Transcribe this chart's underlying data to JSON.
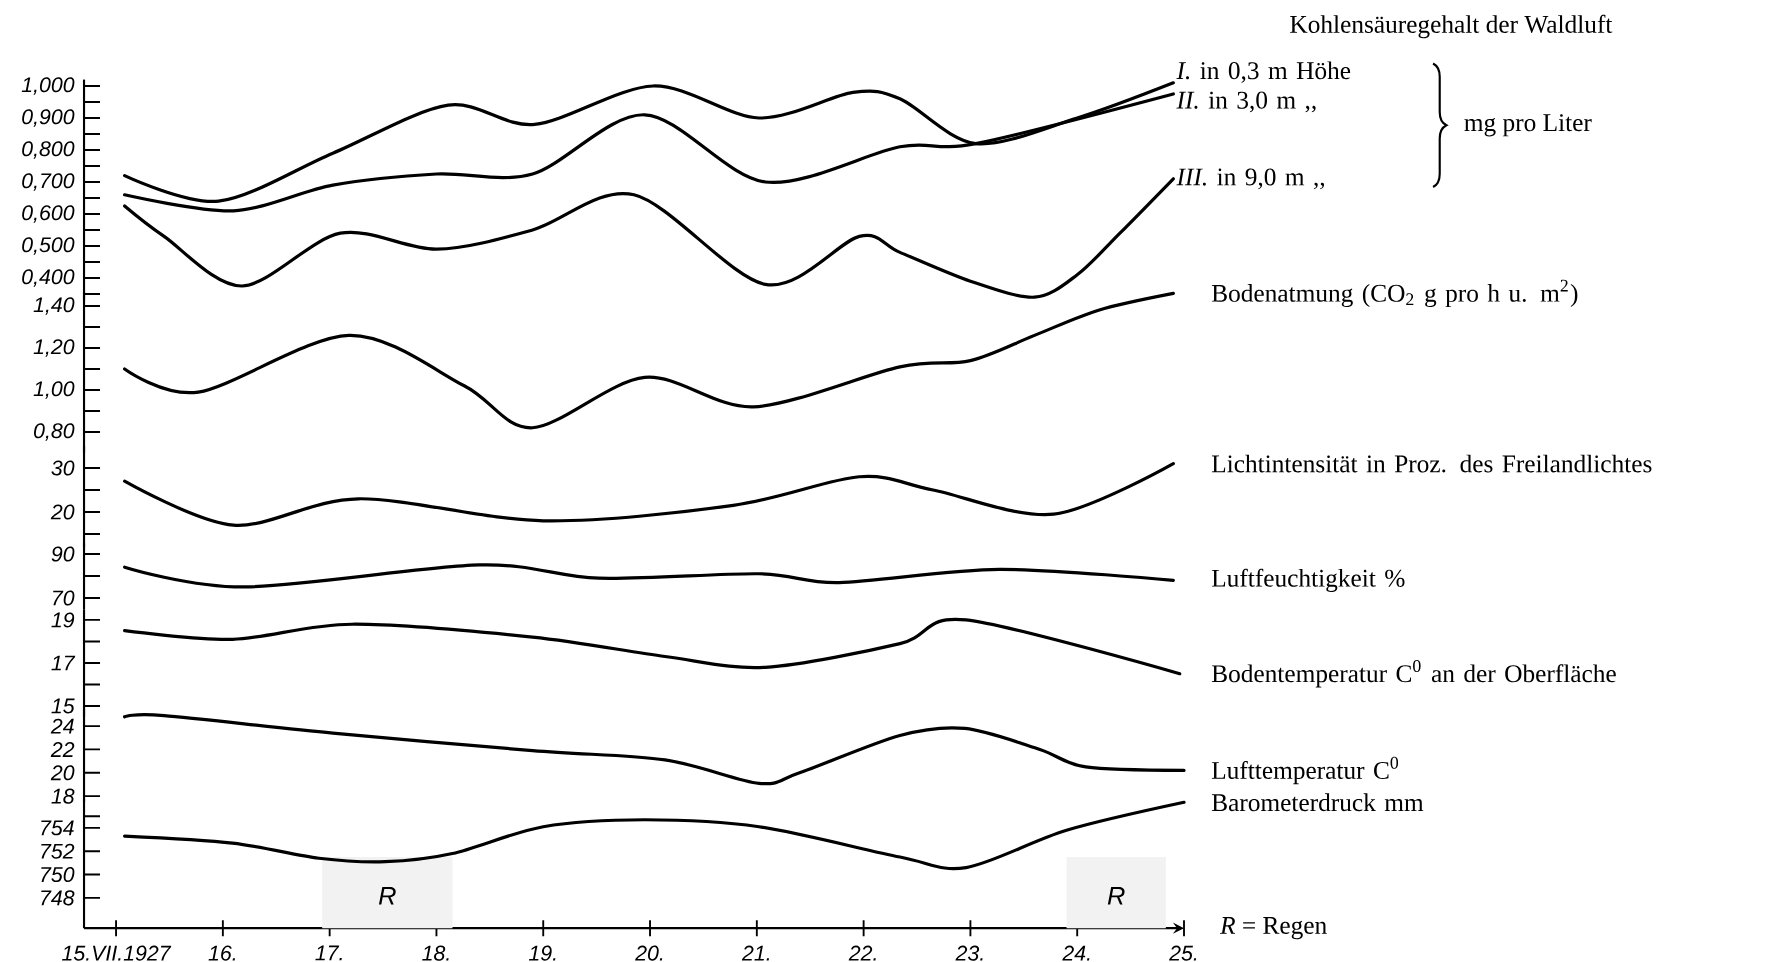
{
  "chart_data": [
    {
      "type": "line",
      "legend_title": "Kohlensäuregehalt der Waldluft",
      "ylabel": "mg pro Liter",
      "tick_labels": "y",
      "xlim": [
        14.7,
        25
      ],
      "ylim": [
        0.33,
        1.02
      ],
      "yticks": [
        {
          "value": 0.35,
          "label": null
        },
        {
          "value": 0.4,
          "label": "0,400"
        },
        {
          "value": 0.45,
          "label": null
        },
        {
          "value": 0.5,
          "label": "0,500"
        },
        {
          "value": 0.55,
          "label": null
        },
        {
          "value": 0.6,
          "label": "0,600"
        },
        {
          "value": 0.65,
          "label": null
        },
        {
          "value": 0.7,
          "label": "0,700"
        },
        {
          "value": 0.75,
          "label": null
        },
        {
          "value": 0.8,
          "label": "0,800"
        },
        {
          "value": 0.85,
          "label": null
        },
        {
          "value": 0.9,
          "label": "0,900"
        },
        {
          "value": 0.95,
          "label": null
        },
        {
          "value": 1.0,
          "label": "1,000"
        }
      ],
      "series": [
        {
          "name": "*I.* in 0,3 m Höhe",
          "color": "#000000",
          "x": [
            15.08,
            15.96,
            17.03,
            18.11,
            18.92,
            20.03,
            21.02,
            21.9,
            22.34,
            23.05,
            24.0,
            24.9
          ],
          "values": [
            0.72,
            0.64,
            0.79,
            0.94,
            0.88,
            1.0,
            0.9,
            0.98,
            0.96,
            0.82,
            0.9,
            1.01
          ]
        },
        {
          "name": "*II.* in 3,0 m ,,",
          "color": "#000000",
          "x": [
            15.08,
            16.1,
            17.03,
            18.0,
            18.9,
            19.95,
            21.08,
            22.34,
            23.05,
            24.9
          ],
          "values": [
            0.66,
            0.61,
            0.69,
            0.725,
            0.725,
            0.91,
            0.7,
            0.81,
            0.82,
            0.975
          ]
        },
        {
          "name": "*III.* in 9,0 m ,,",
          "color": "#000000",
          "x": [
            15.08,
            15.45,
            16.18,
            17.1,
            18.0,
            18.9,
            19.85,
            21.08,
            21.96,
            22.34,
            23.0,
            23.6,
            24.0,
            24.4,
            24.9
          ],
          "values": [
            0.625,
            0.53,
            0.375,
            0.54,
            0.49,
            0.55,
            0.66,
            0.38,
            0.53,
            0.48,
            0.39,
            0.34,
            0.41,
            0.54,
            0.71
          ]
        }
      ]
    },
    {
      "type": "line",
      "tick_labels": "y",
      "xlim": [
        14.7,
        25
      ],
      "ylim": [
        0.7,
        1.47
      ],
      "yticks": [
        {
          "value": 0.8,
          "label": "0,80"
        },
        {
          "value": 0.9,
          "label": null
        },
        {
          "value": 1.0,
          "label": "1,00"
        },
        {
          "value": 1.1,
          "label": null
        },
        {
          "value": 1.2,
          "label": "1,20"
        },
        {
          "value": 1.3,
          "label": null
        },
        {
          "value": 1.4,
          "label": "1,40"
        }
      ],
      "series": [
        {
          "name": "Bodenatmung (CO$_{2}$ g pro h u. m$^{2}$)",
          "color": "#000000",
          "x": [
            15.08,
            15.77,
            17.18,
            18.26,
            18.9,
            19.95,
            20.97,
            22.34,
            23.0,
            23.6,
            24.2,
            24.9
          ],
          "values": [
            1.1,
            0.99,
            1.26,
            1.02,
            0.82,
            1.06,
            0.92,
            1.11,
            1.14,
            1.26,
            1.38,
            1.46
          ]
        }
      ]
    },
    {
      "type": "line",
      "tick_labels": "y",
      "xlim": [
        14.7,
        25
      ],
      "ylim": [
        12,
        35
      ],
      "yticks": [
        {
          "value": 15,
          "label": null
        },
        20,
        {
          "value": 25,
          "label": null
        },
        30
      ],
      "series": [
        {
          "name": "Lichtintensität in Proz. des Freilandlichtes",
          "color": "#000000",
          "x": [
            15.08,
            16.1,
            17.27,
            19.0,
            20.78,
            21.96,
            22.65,
            23.78,
            24.9
          ],
          "values": [
            27,
            17,
            23,
            18,
            21.5,
            28,
            25,
            19.5,
            31
          ]
        }
      ]
    },
    {
      "type": "line",
      "tick_labels": "y",
      "xlim": [
        14.7,
        25
      ],
      "ylim": [
        65,
        95
      ],
      "yticks": [
        70,
        {
          "value": 80,
          "label": null
        },
        90
      ],
      "series": [
        {
          "name": "Luftfeuchtigkeit %",
          "color": "#000000",
          "x": [
            15.08,
            16.2,
            18.4,
            19.52,
            21.02,
            21.77,
            23.27,
            24.9
          ],
          "values": [
            84,
            75,
            85,
            79,
            81,
            77,
            83,
            78
          ]
        }
      ]
    },
    {
      "type": "line",
      "tick_labels": "y",
      "xlim": [
        14.7,
        25
      ],
      "ylim": [
        14.5,
        19.5
      ],
      "yticks": [
        15,
        {
          "value": 16,
          "label": null
        },
        17,
        {
          "value": 18,
          "label": null
        },
        19
      ],
      "series": [
        {
          "name": "Bodentemperatur C$^{0}$ an der Oberfläche",
          "color": "#000000",
          "x": [
            15.08,
            16.09,
            17.21,
            18.9,
            20.14,
            21.08,
            22.34,
            22.96,
            24.96
          ],
          "values": [
            18.5,
            18.1,
            18.8,
            18.2,
            17.3,
            16.8,
            17.9,
            19.0,
            16.5
          ]
        }
      ]
    },
    {
      "type": "line",
      "tick_labels": "y",
      "xlim": [
        14.7,
        25
      ],
      "ylim": [
        17.5,
        25.5
      ],
      "yticks": [
        18,
        20,
        22,
        24
      ],
      "series": [
        {
          "name": "Lufttemperatur C$^{0}$",
          "color": "#000000",
          "x": [
            15.08,
            15.45,
            17.03,
            18.9,
            20.14,
            21.02,
            21.4,
            22.34,
            22.95,
            23.65,
            24.08,
            25.0
          ],
          "values": [
            24.8,
            24.9,
            23.4,
            21.9,
            21.1,
            19.1,
            20.0,
            23.2,
            23.8,
            22.0,
            20.5,
            20.2
          ]
        }
      ]
    },
    {
      "type": "line",
      "xlim": [
        14.7,
        25
      ],
      "ylim": [
        745.4,
        756.5
      ],
      "xticks": [
        {
          "value": 15,
          "label": "15.VII.1927"
        },
        {
          "value": 16,
          "label": "16."
        },
        {
          "value": 17,
          "label": "17."
        },
        {
          "value": 18,
          "label": "18."
        },
        {
          "value": 19,
          "label": "19."
        },
        {
          "value": 20,
          "label": "20."
        },
        {
          "value": 21,
          "label": "21."
        },
        {
          "value": 22,
          "label": "22."
        },
        {
          "value": 23,
          "label": "23."
        },
        {
          "value": 24,
          "label": "24."
        },
        {
          "value": 25,
          "label": "25."
        }
      ],
      "yticks": [
        748,
        750,
        752,
        754,
        {
          "value": 755,
          "label": null
        }
      ],
      "bands": [
        {
          "axis": "x",
          "from": 16.93,
          "to": 18.15,
          "label": "R",
          "color": "#f2f2f2"
        },
        {
          "axis": "x",
          "from": 23.9,
          "to": 24.83,
          "label": "R",
          "color": "#f2f2f2"
        }
      ],
      "annotations": [
        "*R* = Regen"
      ],
      "series": [
        {
          "name": "Barometerdruck mm",
          "color": "#000000",
          "x": [
            15.08,
            16.09,
            16.9,
            17.52,
            18.15,
            19.0,
            19.95,
            21.02,
            22.34,
            22.96,
            23.9,
            25.0
          ],
          "values": [
            753.3,
            752.7,
            751.4,
            751.1,
            751.8,
            754.1,
            754.7,
            754.1,
            751.5,
            750.6,
            753.8,
            756.2
          ]
        }
      ]
    }
  ]
}
